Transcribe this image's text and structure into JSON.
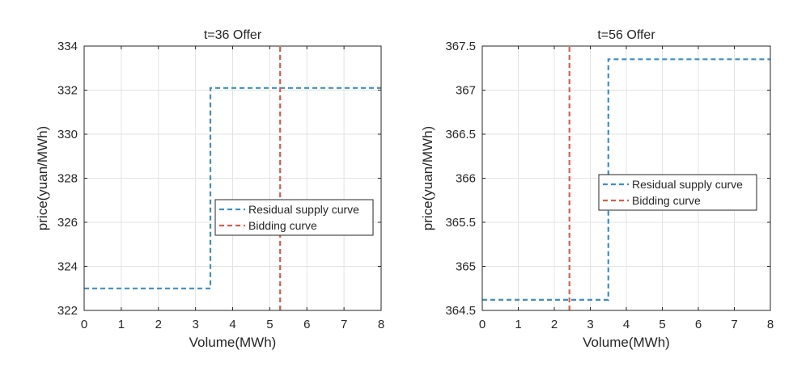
{
  "colors": {
    "residual": "#3d8fc9",
    "bidding": "#e0594a",
    "grid": "#e3e3e3",
    "axis": "#262626"
  },
  "chart_data": [
    {
      "type": "line",
      "title": "t=36 Offer",
      "xlabel": "Volume(MWh)",
      "ylabel": "price(yuan/MWh)",
      "xlim": [
        0,
        8
      ],
      "ylim": [
        322,
        334
      ],
      "xticks": [
        "0",
        "1",
        "2",
        "3",
        "4",
        "5",
        "6",
        "7",
        "8"
      ],
      "yticks": [
        "322",
        "324",
        "326",
        "328",
        "330",
        "332",
        "334"
      ],
      "grid": true,
      "legend_position": "center-right",
      "series": [
        {
          "name": "Residual supply curve",
          "style": "dashed",
          "points": [
            [
              0,
              323
            ],
            [
              3.4,
              323
            ],
            [
              3.4,
              332.1
            ],
            [
              8,
              332.1
            ]
          ]
        },
        {
          "name": "Bidding curve",
          "style": "dashed",
          "points": [
            [
              5.28,
              322
            ],
            [
              5.28,
              334
            ]
          ]
        }
      ]
    },
    {
      "type": "line",
      "title": "t=56 Offer",
      "xlabel": "Volume(MWh)",
      "ylabel": "price(yuan/MWh)",
      "xlim": [
        0,
        8
      ],
      "ylim": [
        364.5,
        367.5
      ],
      "xticks": [
        "0",
        "1",
        "2",
        "3",
        "4",
        "5",
        "6",
        "7",
        "8"
      ],
      "yticks": [
        "364.5",
        "365",
        "365.5",
        "366",
        "366.5",
        "367",
        "367.5"
      ],
      "grid": true,
      "legend_position": "center-right",
      "series": [
        {
          "name": "Residual supply curve",
          "style": "dashed",
          "points": [
            [
              0,
              364.62
            ],
            [
              3.5,
              364.62
            ],
            [
              3.5,
              367.35
            ],
            [
              8,
              367.35
            ]
          ]
        },
        {
          "name": "Bidding curve",
          "style": "dashed",
          "points": [
            [
              2.42,
              364.5
            ],
            [
              2.42,
              367.5
            ]
          ]
        }
      ]
    }
  ]
}
